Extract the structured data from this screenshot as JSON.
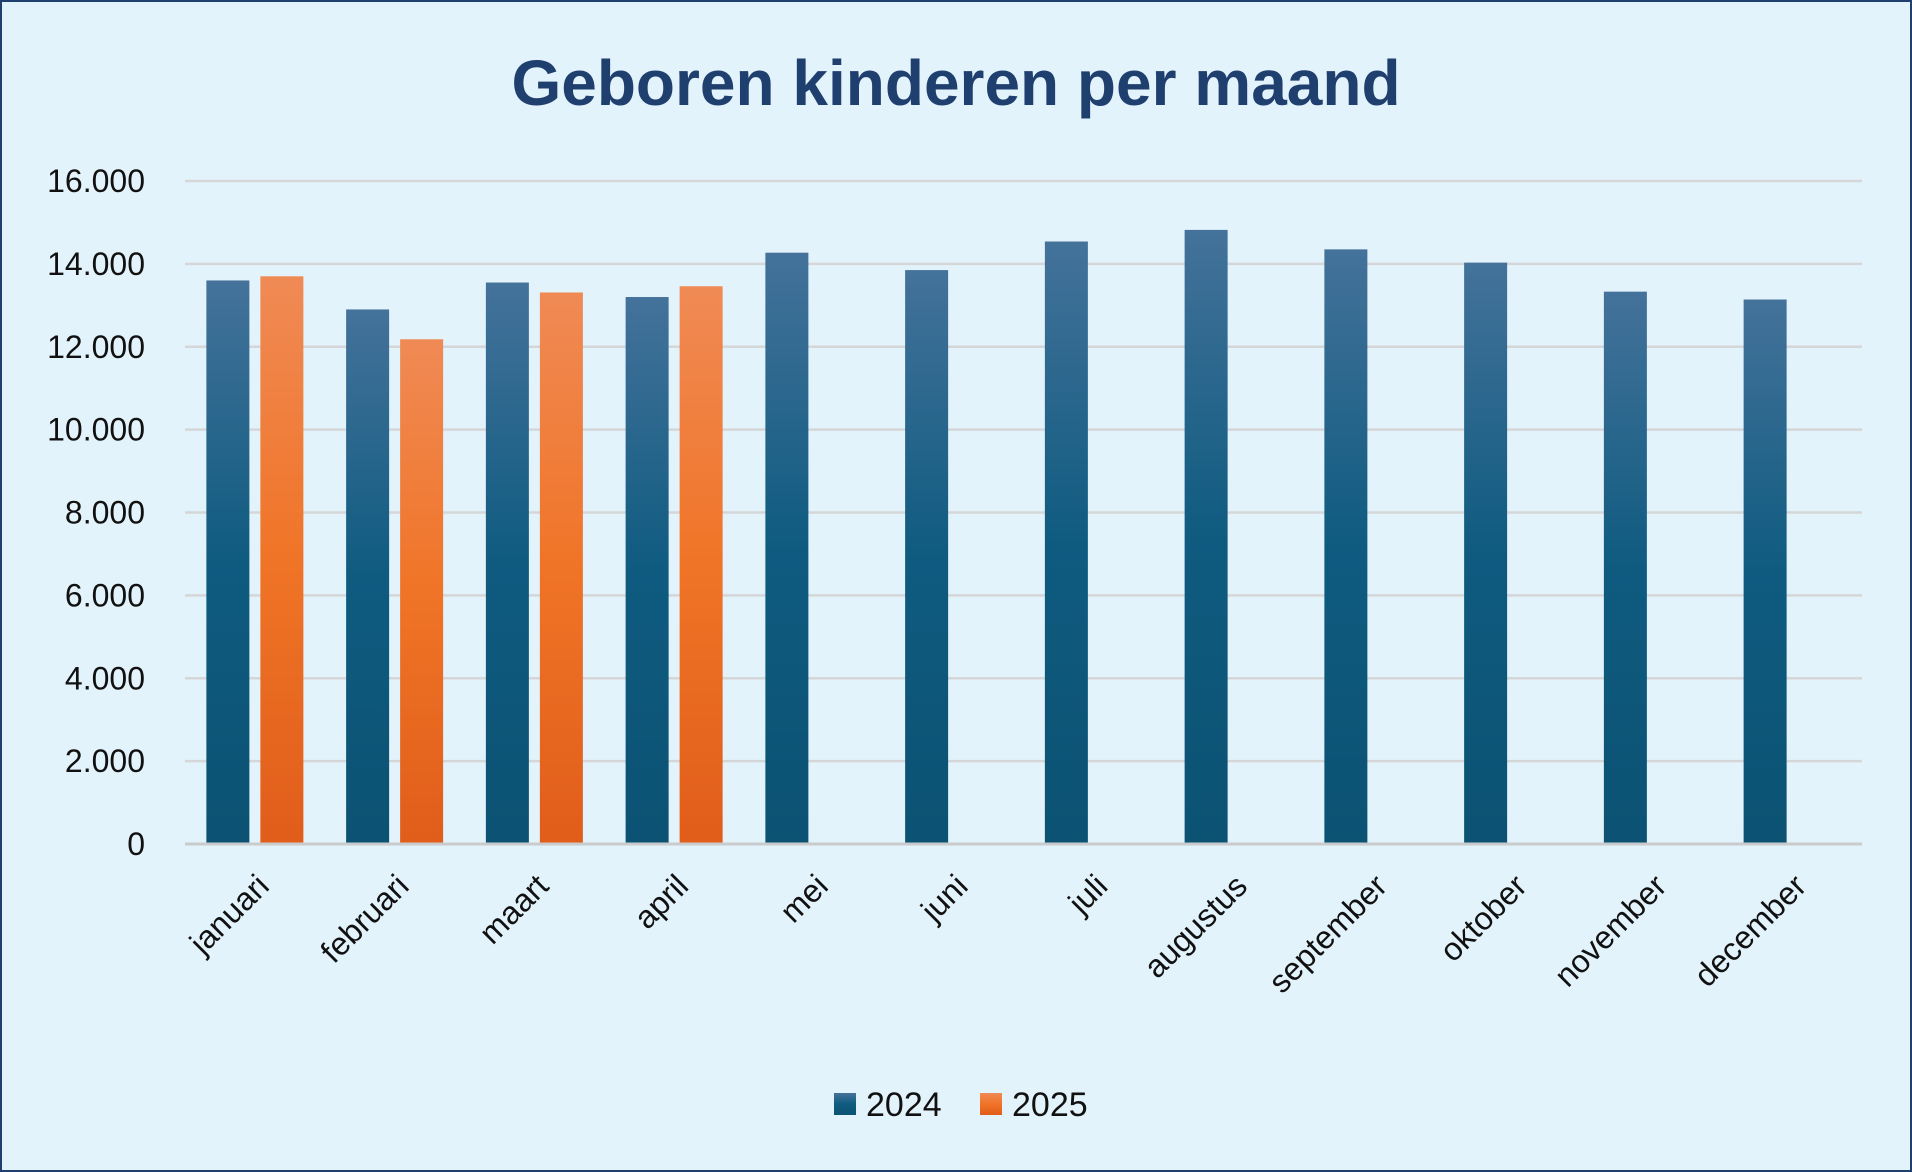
{
  "chart_data": {
    "type": "bar",
    "title": "Geboren kinderen per maand",
    "xlabel": "",
    "ylabel": "",
    "ylim": [
      0,
      16000
    ],
    "yticks": [
      0,
      2000,
      4000,
      6000,
      8000,
      10000,
      12000,
      14000,
      16000
    ],
    "ytick_labels": [
      "0",
      "2.000",
      "4.000",
      "6.000",
      "8.000",
      "10.000",
      "12.000",
      "14.000",
      "16.000"
    ],
    "grid": true,
    "legend_position": "bottom",
    "categories": [
      "januari",
      "februari",
      "maart",
      "april",
      "mei",
      "juni",
      "juli",
      "augustus",
      "september",
      "oktober",
      "november",
      "december"
    ],
    "series": [
      {
        "name": "2024",
        "color": "#0d5a7e",
        "values": [
          13600,
          12900,
          13550,
          13200,
          14270,
          13850,
          14540,
          14820,
          14350,
          14030,
          13330,
          13140
        ]
      },
      {
        "name": "2025",
        "color": "#f07a3a",
        "values": [
          13700,
          12180,
          13310,
          13460,
          null,
          null,
          null,
          null,
          null,
          null,
          null,
          null
        ]
      }
    ]
  }
}
